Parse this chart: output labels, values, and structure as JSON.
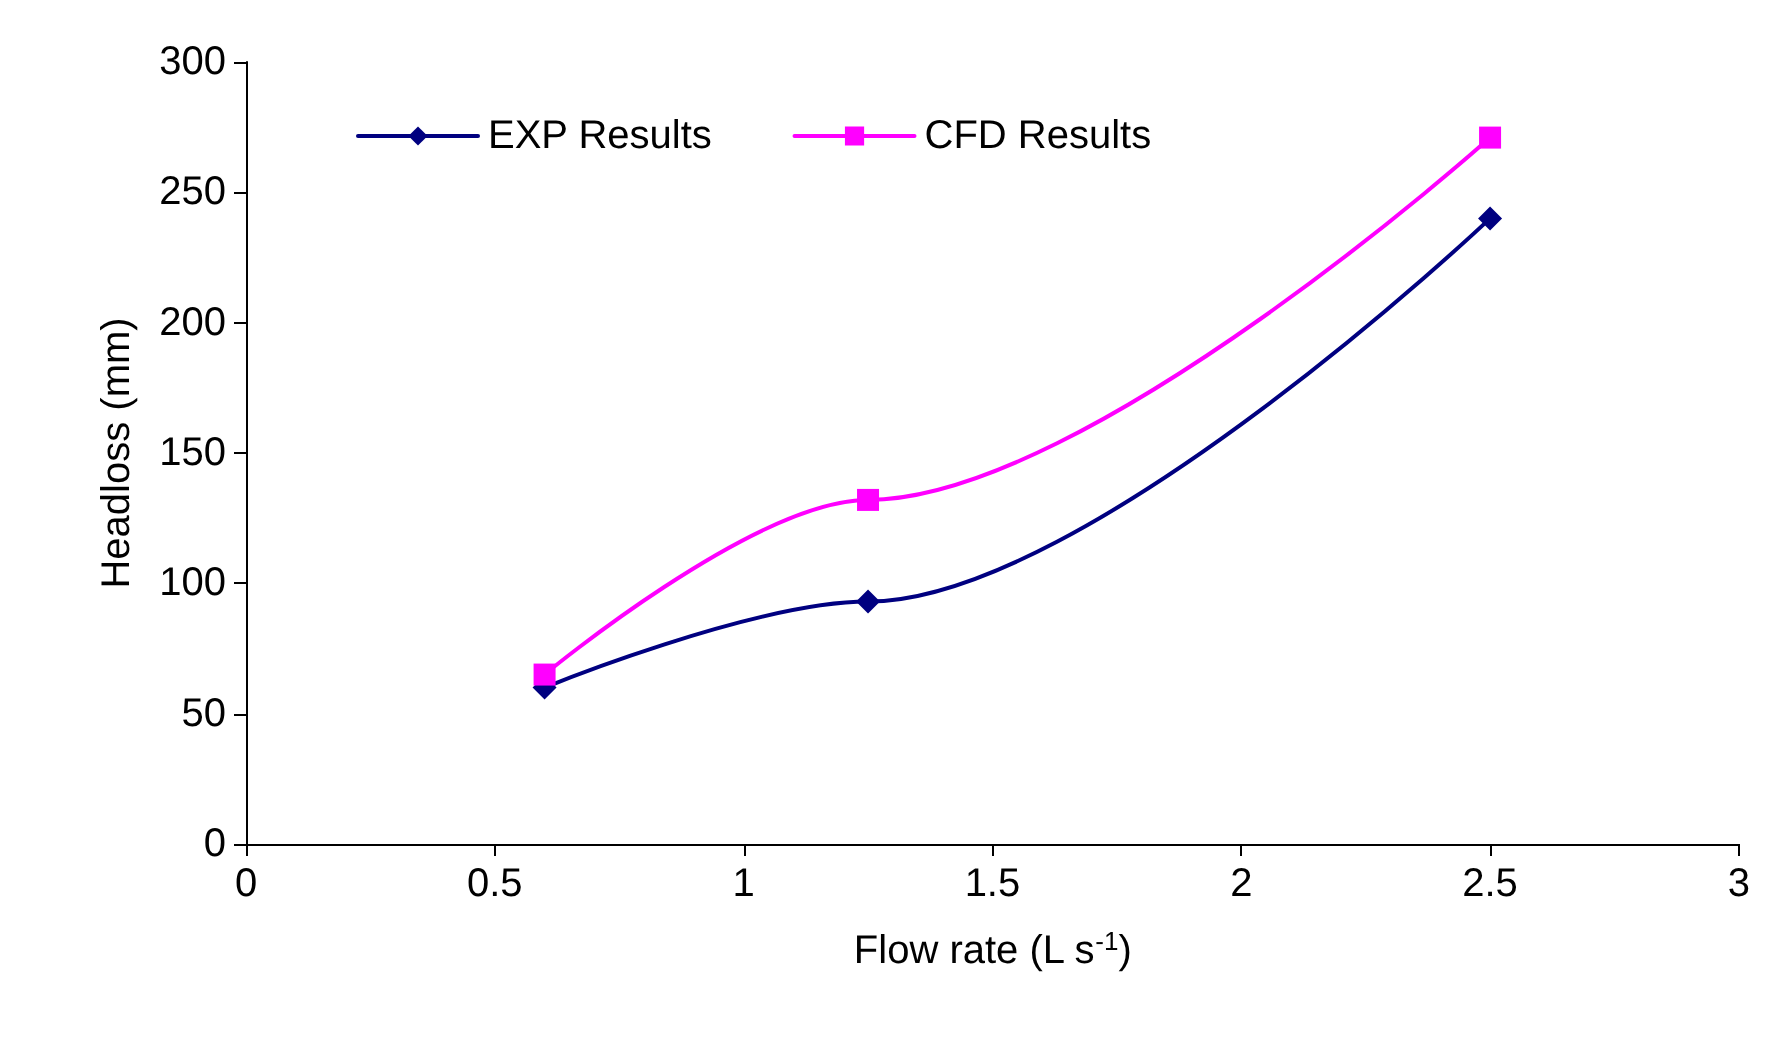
{
  "chart_data": {
    "type": "line",
    "xlabel": "Flow rate (L s$^{-1}$)",
    "ylabel": "Headloss (mm)",
    "series": [
      {
        "name": "EXP Results",
        "color": "#000080",
        "marker": "diamond",
        "x": [
          0.6,
          1.25,
          2.5
        ],
        "values": [
          60,
          93,
          240
        ]
      },
      {
        "name": "CFD Results",
        "color": "#ff00ff",
        "marker": "square",
        "x": [
          0.6,
          1.25,
          2.5
        ],
        "values": [
          65,
          132,
          271
        ]
      }
    ],
    "xlim": [
      0,
      3
    ],
    "xticks": [
      0,
      0.5,
      1,
      1.5,
      2,
      2.5,
      3
    ],
    "ylim": [
      0,
      300
    ],
    "yticks": [
      0,
      50,
      100,
      150,
      200,
      250,
      300
    ],
    "grid": false,
    "legend": "top left",
    "line_style": "solid"
  }
}
